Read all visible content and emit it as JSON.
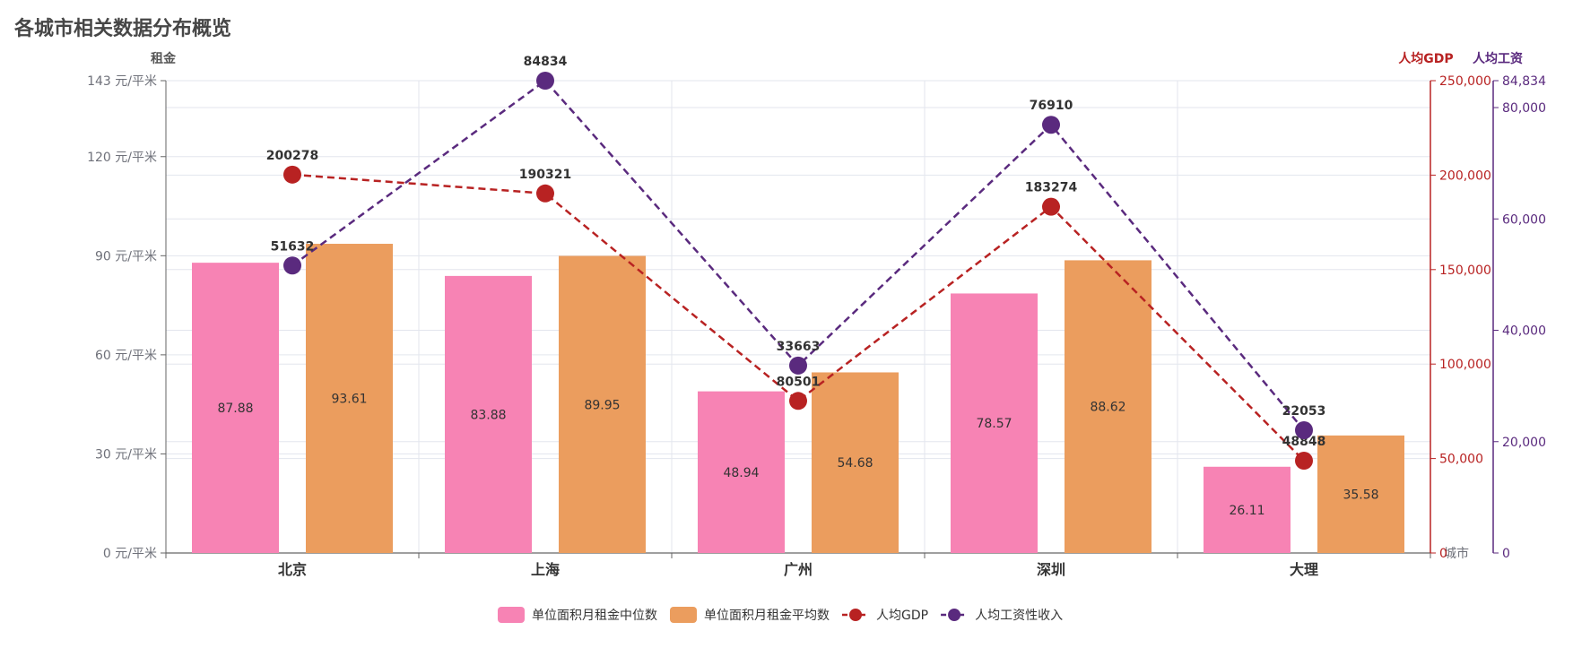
{
  "title": "各城市相关数据分布概览",
  "chart_data": {
    "type": "bar",
    "title": "各城市相关数据分布概览",
    "categories": [
      "北京",
      "上海",
      "广州",
      "深圳",
      "大理"
    ],
    "x_axis_name": "城市",
    "series": [
      {
        "name": "单位面积月租金中位数",
        "type": "bar",
        "axis": "left",
        "values": [
          87.88,
          83.88,
          48.94,
          78.57,
          26.11
        ],
        "color": "#f783b4"
      },
      {
        "name": "单位面积月租金平均数",
        "type": "bar",
        "axis": "left",
        "values": [
          93.61,
          89.95,
          54.68,
          88.62,
          35.58
        ],
        "color": "#eb9d5e"
      },
      {
        "name": "人均GDP",
        "type": "line",
        "axis": "right1",
        "values": [
          200278,
          190321,
          80501,
          183274,
          48848
        ],
        "color": "#b82222"
      },
      {
        "name": "人均工资性收入",
        "type": "line",
        "axis": "right2",
        "values": [
          51632,
          84834,
          33663,
          76910,
          22053
        ],
        "color": "#5a2a7e"
      }
    ],
    "axes": {
      "left": {
        "name": "租金",
        "max": 143,
        "ticks": [
          0,
          30,
          60,
          90,
          120,
          143
        ],
        "tick_labels": [
          "0 元/平米",
          "30 元/平米",
          "60 元/平米",
          "90 元/平米",
          "120 元/平米",
          "143 元/平米"
        ]
      },
      "right1": {
        "name": "人均GDP",
        "max": 250000,
        "ticks": [
          0,
          50000,
          100000,
          150000,
          200000,
          250000
        ],
        "tick_labels": [
          "0",
          "50,000",
          "100,000",
          "150,000",
          "200,000",
          "250,000"
        ],
        "color": "#b82222"
      },
      "right2": {
        "name": "人均工资",
        "max": 84834,
        "ticks": [
          0,
          20000,
          40000,
          60000,
          80000,
          84834
        ],
        "tick_labels": [
          "0",
          "20,000",
          "40,000",
          "60,000",
          "80,000",
          "84,834"
        ],
        "color": "#5a2a7e"
      }
    },
    "legend": {
      "position": "bottom-center"
    },
    "grid": true
  }
}
